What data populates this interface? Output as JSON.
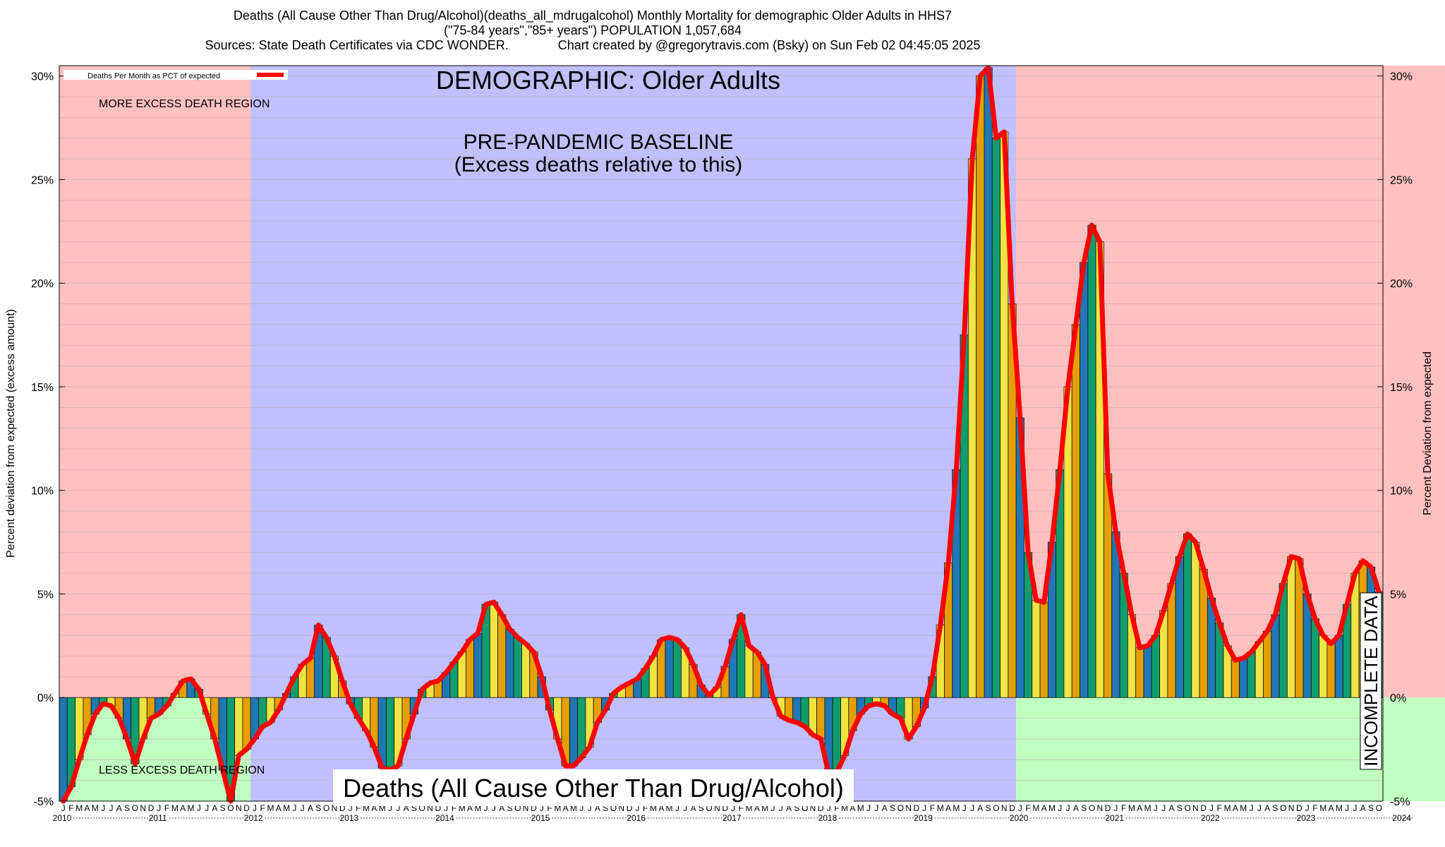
{
  "header": {
    "title_line1": "Deaths (All Cause Other Than Drug/Alcohol)(deaths_all_mdrugalcohol) Monthly Mortality for demographic Older Adults in HHS7",
    "title_line2": "(\"75-84 years\",\"85+ years\") POPULATION 1,057,684",
    "title_line3": "Sources: State Death Certificates via CDC WONDER.              Chart created by @gregorytravis.com (Bsky) on Sun Feb 02 04:45:05 2025"
  },
  "chart_data": {
    "type": "bar",
    "x_start": "2010-01",
    "x_end": "2024-10",
    "ylim": [
      -5,
      30.5
    ],
    "yticks": [
      -5,
      0,
      5,
      10,
      15,
      20,
      25,
      30
    ],
    "ytick_labels": [
      "-5%",
      "0%",
      "5%",
      "10%",
      "15%",
      "20%",
      "25%",
      "30%"
    ],
    "ylabel_left": "Percent deviation from expected (excess amount)",
    "ylabel_right": "Percent Deviation from expected",
    "years": [
      "2010",
      "2011",
      "2012",
      "2013",
      "2014",
      "2015",
      "2016",
      "2017",
      "2018",
      "2019",
      "2020",
      "2021",
      "2022",
      "2023",
      "2024"
    ],
    "month_letters": [
      "J",
      "F",
      "M",
      "A",
      "M",
      "J",
      "J",
      "A",
      "S",
      "O",
      "N",
      "D"
    ],
    "series": [
      {
        "name": "Deaths Per Month as PCT of expected",
        "color": "#ff0000",
        "values": [
          -5.0,
          -4.3,
          -3.0,
          -1.8,
          -0.8,
          -0.3,
          -0.4,
          -1.0,
          -2.0,
          -3.2,
          -2.0,
          -1.0,
          -0.8,
          -0.4,
          0.2,
          0.8,
          0.9,
          0.4,
          -0.8,
          -2.0,
          -3.5,
          -5.0,
          -2.8,
          -2.5,
          -2.0,
          -1.4,
          -1.2,
          -0.6,
          0.2,
          1.0,
          1.6,
          1.9,
          3.5,
          2.9,
          2.0,
          0.8,
          -0.3,
          -1.0,
          -1.6,
          -2.4,
          -3.4,
          -3.5,
          -3.3,
          -2.0,
          -0.8,
          0.4,
          0.7,
          0.8,
          1.2,
          1.7,
          2.2,
          2.8,
          3.1,
          4.5,
          4.6,
          4.0,
          3.3,
          2.9,
          2.6,
          2.2,
          1.0,
          -0.6,
          -2.0,
          -3.3,
          -3.3,
          -2.9,
          -2.4,
          -1.2,
          -0.6,
          0.2,
          0.5,
          0.7,
          0.9,
          1.4,
          2.0,
          2.8,
          2.9,
          2.8,
          2.4,
          1.6,
          0.6,
          0.1,
          0.5,
          1.5,
          2.8,
          4.0,
          2.5,
          2.2,
          1.6,
          0.0,
          -0.9,
          -1.1,
          -1.2,
          -1.4,
          -1.8,
          -2.0,
          -3.7,
          -3.6,
          -2.8,
          -1.6,
          -0.8,
          -0.4,
          -0.3,
          -0.4,
          -0.8,
          -1.0,
          -2.0,
          -1.4,
          -0.5,
          1.0,
          3.5,
          6.5,
          11.0,
          17.5,
          26.0,
          30.0,
          30.4,
          27.0,
          27.3,
          19.0,
          13.5,
          7.0,
          4.7,
          4.6,
          7.5,
          11.0,
          15.0,
          18.0,
          21.0,
          22.8,
          22.0,
          10.8,
          8.0,
          6.0,
          4.0,
          2.4,
          2.5,
          3.0,
          4.2,
          5.5,
          6.8,
          7.9,
          7.5,
          6.2,
          4.8,
          3.6,
          2.5,
          1.8,
          1.9,
          2.2,
          2.7,
          3.2,
          4.0,
          5.5,
          6.8,
          6.7,
          5.0,
          3.8,
          3.0,
          2.6,
          3.0,
          4.5,
          6.0,
          6.6,
          6.3,
          5.1
        ]
      }
    ],
    "bar_colors": [
      "#1f77b4",
      "#0f9d6e",
      "#f0e442",
      "#e69f00"
    ],
    "regions": [
      {
        "from": "2010-01",
        "to": "2012-01",
        "label": "MORE EXCESS DEATH REGION",
        "color": "#ffc0c0",
        "low_label": "LESS EXCESS DEATH REGION",
        "low_color": "#c0ffc0"
      },
      {
        "from": "2012-01",
        "to": "2020-01",
        "label": "PRE-PANDEMIC BASELINE",
        "label2": "(Excess deaths relative to this)",
        "color": "#c0c0ff"
      },
      {
        "from": "2020-01",
        "to": "2024-08",
        "color": "#ffc0c0",
        "low_color": "#c0ffc0"
      }
    ],
    "incomplete_from": "2024-08",
    "incomplete_label": "INCOMPLETE DATA",
    "demographic_label": "DEMOGRAPHIC: Older Adults",
    "bottom_label": "Deaths (All Cause Other Than Drug/Alcohol)",
    "legend": {
      "label": "Deaths Per Month as PCT of expected",
      "position": "top-left"
    },
    "grid": true
  }
}
